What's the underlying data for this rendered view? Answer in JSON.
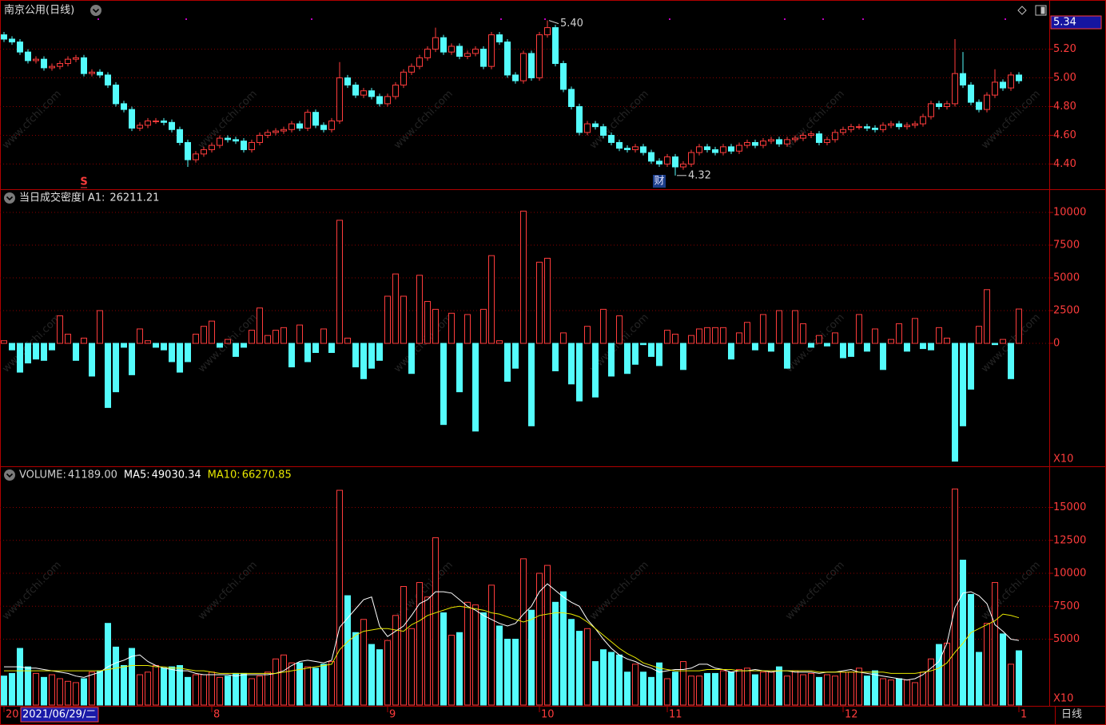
{
  "chart_data": [
    {
      "type": "candlestick",
      "title": "南京公用(日线)",
      "up_color": "#ff3c3c",
      "down_color": "#54fcfc",
      "grid": true,
      "ylim": [
        4.23,
        5.42
      ],
      "yticks": [
        {
          "value": 4.4,
          "label": "4.40"
        },
        {
          "value": 4.6,
          "label": "4.60"
        },
        {
          "value": 4.8,
          "label": "4.80"
        },
        {
          "value": 5.0,
          "label": "5.00"
        },
        {
          "value": 5.2,
          "label": "5.20"
        }
      ],
      "price_marker": 5.34,
      "annotations": [
        {
          "index": 68,
          "value": 5.4,
          "label": "5.40"
        },
        {
          "index": 84,
          "value": 4.32,
          "label": "4.32"
        }
      ],
      "markers": [
        {
          "index": 10,
          "label": "S"
        },
        {
          "index": 82,
          "label": "财"
        }
      ],
      "open": [
        5.3,
        5.27,
        5.25,
        5.18,
        5.12,
        5.13,
        5.07,
        5.08,
        5.1,
        5.13,
        5.14,
        5.03,
        5.04,
        5.02,
        4.95,
        4.82,
        4.78,
        4.65,
        4.67,
        4.7,
        4.7,
        4.69,
        4.64,
        4.55,
        4.43,
        4.47,
        4.5,
        4.53,
        4.58,
        4.57,
        4.56,
        4.5,
        4.55,
        4.6,
        4.62,
        4.63,
        4.64,
        4.68,
        4.65,
        4.76,
        4.67,
        4.64,
        4.7,
        5.0,
        4.95,
        4.88,
        4.91,
        4.87,
        4.82,
        4.87,
        4.95,
        5.04,
        5.08,
        5.14,
        5.2,
        5.28,
        5.18,
        5.22,
        5.15,
        5.17,
        5.2,
        5.08,
        5.3,
        5.25,
        5.02,
        4.98,
        5.17,
        5.0,
        5.3,
        5.35,
        5.1,
        4.92,
        4.8,
        4.62,
        4.68,
        4.66,
        4.6,
        4.55,
        4.51,
        4.5,
        4.52,
        4.48,
        4.42,
        4.4,
        4.45,
        4.38,
        4.4,
        4.48,
        4.52,
        4.5,
        4.48,
        4.52,
        4.49,
        4.53,
        4.55,
        4.53,
        4.56,
        4.57,
        4.54,
        4.57,
        4.58,
        4.6,
        4.61,
        4.55,
        4.57,
        4.62,
        4.64,
        4.66,
        4.66,
        4.65,
        4.64,
        4.67,
        4.68,
        4.66,
        4.67,
        4.68,
        4.73,
        4.82,
        4.8,
        4.82,
        5.03,
        4.95,
        4.83,
        4.78,
        4.88,
        4.97,
        4.93,
        5.02
      ],
      "high": [
        5.32,
        5.29,
        5.27,
        5.2,
        5.15,
        5.15,
        5.1,
        5.12,
        5.15,
        5.16,
        5.16,
        5.06,
        5.06,
        5.04,
        4.97,
        4.84,
        4.8,
        4.69,
        4.72,
        4.72,
        4.72,
        4.71,
        4.66,
        4.57,
        4.49,
        4.52,
        4.55,
        4.6,
        4.6,
        4.59,
        4.58,
        4.57,
        4.62,
        4.64,
        4.65,
        4.66,
        4.7,
        4.7,
        4.78,
        4.78,
        4.69,
        4.72,
        5.11,
        5.02,
        4.97,
        4.93,
        4.93,
        4.89,
        4.89,
        4.97,
        5.06,
        5.1,
        5.16,
        5.22,
        5.35,
        5.3,
        5.24,
        5.24,
        5.19,
        5.22,
        5.22,
        5.32,
        5.32,
        5.27,
        5.04,
        5.19,
        5.19,
        5.32,
        5.4,
        5.37,
        5.12,
        4.94,
        4.82,
        4.7,
        4.7,
        4.68,
        4.62,
        4.57,
        4.53,
        4.54,
        4.54,
        4.5,
        4.44,
        4.47,
        4.47,
        4.42,
        4.5,
        4.54,
        4.54,
        4.52,
        4.54,
        4.54,
        4.55,
        4.57,
        4.57,
        4.58,
        4.59,
        4.59,
        4.59,
        4.6,
        4.62,
        4.63,
        4.63,
        4.59,
        4.64,
        4.66,
        4.68,
        4.68,
        4.68,
        4.67,
        4.69,
        4.7,
        4.7,
        4.69,
        4.7,
        4.75,
        4.84,
        4.84,
        4.84,
        5.27,
        5.18,
        4.97,
        4.85,
        4.9,
        5.06,
        4.99,
        5.04,
        5.04
      ],
      "low": [
        5.25,
        5.23,
        5.16,
        5.1,
        5.1,
        5.05,
        5.05,
        5.06,
        5.08,
        5.11,
        5.01,
        5.01,
        5.0,
        4.93,
        4.8,
        4.76,
        4.63,
        4.63,
        4.65,
        4.68,
        4.67,
        4.62,
        4.53,
        4.38,
        4.41,
        4.45,
        4.48,
        4.51,
        4.55,
        4.54,
        4.48,
        4.48,
        4.53,
        4.58,
        4.6,
        4.61,
        4.62,
        4.63,
        4.63,
        4.65,
        4.62,
        4.62,
        4.68,
        4.93,
        4.86,
        4.86,
        4.85,
        4.8,
        4.8,
        4.85,
        4.93,
        5.02,
        5.06,
        5.12,
        5.18,
        5.16,
        5.16,
        5.13,
        5.13,
        5.15,
        5.06,
        5.06,
        5.23,
        5.0,
        4.96,
        4.96,
        4.98,
        4.98,
        5.28,
        5.08,
        4.9,
        4.78,
        4.6,
        4.6,
        4.64,
        4.58,
        4.53,
        4.49,
        4.48,
        4.48,
        4.46,
        4.4,
        4.38,
        4.38,
        4.32,
        4.36,
        4.38,
        4.46,
        4.48,
        4.46,
        4.46,
        4.47,
        4.47,
        4.51,
        4.51,
        4.51,
        4.54,
        4.52,
        4.52,
        4.55,
        4.56,
        4.58,
        4.53,
        4.53,
        4.55,
        4.6,
        4.62,
        4.64,
        4.63,
        4.62,
        4.62,
        4.65,
        4.64,
        4.64,
        4.65,
        4.66,
        4.71,
        4.78,
        4.78,
        4.8,
        4.93,
        4.81,
        4.76,
        4.76,
        4.86,
        4.91,
        4.91,
        4.96
      ],
      "close": [
        5.27,
        5.25,
        5.18,
        5.12,
        5.13,
        5.07,
        5.08,
        5.1,
        5.13,
        5.14,
        5.03,
        5.04,
        5.02,
        4.95,
        4.82,
        4.78,
        4.65,
        4.67,
        4.7,
        4.7,
        4.69,
        4.64,
        4.55,
        4.43,
        4.47,
        4.5,
        4.53,
        4.58,
        4.57,
        4.56,
        4.5,
        4.55,
        4.6,
        4.62,
        4.63,
        4.64,
        4.68,
        4.65,
        4.76,
        4.67,
        4.64,
        4.7,
        5.0,
        4.95,
        4.88,
        4.91,
        4.87,
        4.82,
        4.87,
        4.95,
        5.04,
        5.08,
        5.14,
        5.2,
        5.28,
        5.18,
        5.22,
        5.15,
        5.17,
        5.2,
        5.08,
        5.3,
        5.25,
        5.02,
        4.98,
        5.17,
        5.0,
        5.3,
        5.35,
        5.1,
        4.92,
        4.8,
        4.62,
        4.68,
        4.66,
        4.6,
        4.55,
        4.51,
        4.5,
        4.52,
        4.48,
        4.42,
        4.4,
        4.45,
        4.38,
        4.4,
        4.48,
        4.52,
        4.5,
        4.48,
        4.52,
        4.49,
        4.53,
        4.55,
        4.53,
        4.56,
        4.57,
        4.54,
        4.57,
        4.58,
        4.6,
        4.61,
        4.55,
        4.57,
        4.62,
        4.64,
        4.66,
        4.66,
        4.65,
        4.64,
        4.67,
        4.68,
        4.66,
        4.67,
        4.68,
        4.73,
        4.82,
        4.8,
        4.82,
        5.03,
        4.95,
        4.83,
        4.78,
        4.88,
        4.97,
        4.93,
        5.02,
        4.98
      ]
    },
    {
      "type": "bar",
      "title": "当日成交密度I",
      "readouts": [
        {
          "label": "A1:",
          "value": 26211.21
        }
      ],
      "positive_color": "#ff3c3c",
      "negative_color": "#54fcfc",
      "grid": true,
      "scale_label": "X10",
      "ylim": [
        -9330,
        11710
      ],
      "yticks": [
        0,
        2500,
        5000,
        7500,
        10000
      ],
      "values": [
        200,
        -500,
        -2200,
        -1500,
        -1200,
        -1300,
        -500,
        2100,
        700,
        -1300,
        400,
        -2500,
        2500,
        -4900,
        -3700,
        -300,
        -2400,
        1100,
        200,
        -300,
        -500,
        -1400,
        -2200,
        -1400,
        700,
        1300,
        1700,
        -300,
        300,
        -1000,
        -300,
        1000,
        2700,
        600,
        1000,
        1200,
        -1800,
        1400,
        -1400,
        -700,
        1100,
        -700,
        9400,
        400,
        -1800,
        -2700,
        -1900,
        -1300,
        3600,
        5300,
        3600,
        -2300,
        5200,
        3200,
        2600,
        -6200,
        2300,
        -3700,
        2200,
        -6700,
        2600,
        6700,
        200,
        -2900,
        -1900,
        10100,
        -6300,
        6200,
        6500,
        -2100,
        800,
        -3100,
        -4400,
        1300,
        -4100,
        2600,
        -2500,
        2100,
        -2300,
        -1600,
        -100,
        -1000,
        -1700,
        1000,
        700,
        -2000,
        600,
        1100,
        1200,
        1200,
        1200,
        -1200,
        800,
        1600,
        -500,
        2200,
        -600,
        2500,
        -1900,
        2500,
        1500,
        -300,
        600,
        -200,
        800,
        -1100,
        -1000,
        2200,
        -600,
        1100,
        -2000,
        300,
        1500,
        -600,
        1900,
        -400,
        -500,
        1200,
        400,
        -9000,
        -6300,
        -3500,
        1300,
        4100,
        -100,
        300,
        -2700,
        2621.121
      ]
    },
    {
      "type": "volume",
      "name": "VOLUME:",
      "readout": "41189.00",
      "readout_color": "#d0d0d0",
      "grid": true,
      "scale_label": "X10",
      "ylim": [
        0,
        18000
      ],
      "yticks": [
        5000,
        7500,
        10000,
        12500,
        15000
      ],
      "xticks": [
        {
          "value": 0,
          "label": "20"
        },
        {
          "value": 26,
          "label": "8"
        },
        {
          "value": 48,
          "label": "9"
        },
        {
          "value": 67,
          "label": "10"
        },
        {
          "value": 83,
          "label": "11"
        },
        {
          "value": 105,
          "label": "12"
        },
        {
          "value": 127,
          "label": "1"
        }
      ],
      "cursor_date": "2021/06/29/二",
      "period_label": "日线",
      "values": [
        2200,
        2400,
        4300,
        2900,
        2400,
        2100,
        2300,
        2000,
        1800,
        1700,
        2000,
        2500,
        2600,
        6200,
        4400,
        3000,
        4300,
        2300,
        2500,
        3000,
        2800,
        2900,
        3000,
        2100,
        2300,
        2300,
        2500,
        2100,
        2200,
        2400,
        2400,
        2000,
        2200,
        2500,
        3500,
        3800,
        3200,
        3200,
        2900,
        2800,
        3100,
        3300,
        16300,
        8300,
        5500,
        6500,
        4600,
        4200,
        4900,
        6800,
        9000,
        5800,
        9300,
        8200,
        12700,
        7000,
        5300,
        5500,
        7800,
        7600,
        7000,
        9100,
        6000,
        5000,
        5000,
        11100,
        7200,
        10000,
        10600,
        7800,
        8600,
        6500,
        5600,
        5800,
        3300,
        4200,
        4000,
        3800,
        2500,
        3100,
        2500,
        2100,
        3200,
        2000,
        2500,
        3300,
        2200,
        2200,
        2400,
        2400,
        2600,
        2500,
        2700,
        2800,
        2300,
        2500,
        2500,
        2900,
        2200,
        2600,
        2300,
        2400,
        2100,
        2300,
        2200,
        2500,
        2500,
        2800,
        2200,
        2600,
        2000,
        1900,
        2000,
        1900,
        1700,
        2500,
        3500,
        4600,
        4700,
        16400,
        11000,
        8400,
        4000,
        6200,
        9300,
        5400,
        3100,
        4118.9
      ],
      "series": [
        {
          "name": "MA5:",
          "readout": "49030.34",
          "color": "#ffffff",
          "values": [
            2900,
            2900,
            2900,
            2800,
            2800,
            2700,
            2600,
            2500,
            2400,
            2200,
            2100,
            2300,
            2500,
            2900,
            3200,
            3400,
            3700,
            3800,
            3300,
            3000,
            2800,
            2700,
            2600,
            2600,
            2400,
            2300,
            2300,
            2300,
            2300,
            2200,
            2300,
            2300,
            2300,
            2300,
            2400,
            2600,
            3000,
            3300,
            3400,
            3300,
            3200,
            3400,
            5900,
            6600,
            7300,
            8000,
            8200,
            6000,
            5200,
            5600,
            6000,
            6800,
            7700,
            8000,
            8600,
            8600,
            8500,
            8000,
            7500,
            7200,
            6800,
            6500,
            6200,
            6000,
            6200,
            6900,
            7500,
            8600,
            9200,
            8700,
            8200,
            7800,
            7500,
            6500,
            5800,
            5000,
            4300,
            3800,
            3500,
            3300,
            3000,
            2800,
            2500,
            2600,
            2700,
            2700,
            2800,
            3100,
            3100,
            2800,
            2700,
            2500,
            2600,
            2600,
            2700,
            2600,
            2500,
            2600,
            2600,
            2500,
            2500,
            2500,
            2400,
            2500,
            2500,
            2600,
            2700,
            2500,
            2400,
            2300,
            2200,
            2100,
            2000,
            1900,
            2000,
            2300,
            2800,
            3300,
            4700,
            7400,
            8500,
            8600,
            8300,
            7700,
            6100,
            5600,
            5000,
            4903.034
          ]
        },
        {
          "name": "MA10:",
          "readout": "66270.85",
          "color": "#e8e800",
          "values": [
            2600,
            2600,
            2600,
            2600,
            2600,
            2600,
            2600,
            2600,
            2600,
            2600,
            2600,
            2600,
            2600,
            2700,
            2800,
            2900,
            3000,
            3000,
            3000,
            2900,
            2900,
            2800,
            2800,
            2700,
            2600,
            2600,
            2500,
            2400,
            2400,
            2400,
            2400,
            2400,
            2400,
            2400,
            2400,
            2500,
            2600,
            2700,
            2800,
            2900,
            3000,
            3100,
            4200,
            4800,
            5300,
            5600,
            5700,
            5800,
            5800,
            5700,
            5600,
            6100,
            6400,
            6800,
            7000,
            7200,
            7400,
            7500,
            7400,
            7300,
            7200,
            7000,
            6900,
            6700,
            6500,
            6300,
            6500,
            6800,
            6900,
            7000,
            7000,
            6900,
            6700,
            6300,
            5800,
            5300,
            4800,
            4300,
            3900,
            3600,
            3200,
            3000,
            2800,
            2700,
            2600,
            2600,
            2600,
            2600,
            2700,
            2700,
            2700,
            2700,
            2600,
            2600,
            2600,
            2600,
            2600,
            2600,
            2600,
            2600,
            2600,
            2600,
            2500,
            2500,
            2500,
            2500,
            2500,
            2500,
            2500,
            2500,
            2500,
            2400,
            2400,
            2400,
            2400,
            2500,
            2600,
            2800,
            3200,
            4000,
            4700,
            5500,
            5800,
            6100,
            6400,
            6900,
            6800,
            6627.085
          ]
        }
      ]
    }
  ],
  "watermark": "www.cfchi.com"
}
